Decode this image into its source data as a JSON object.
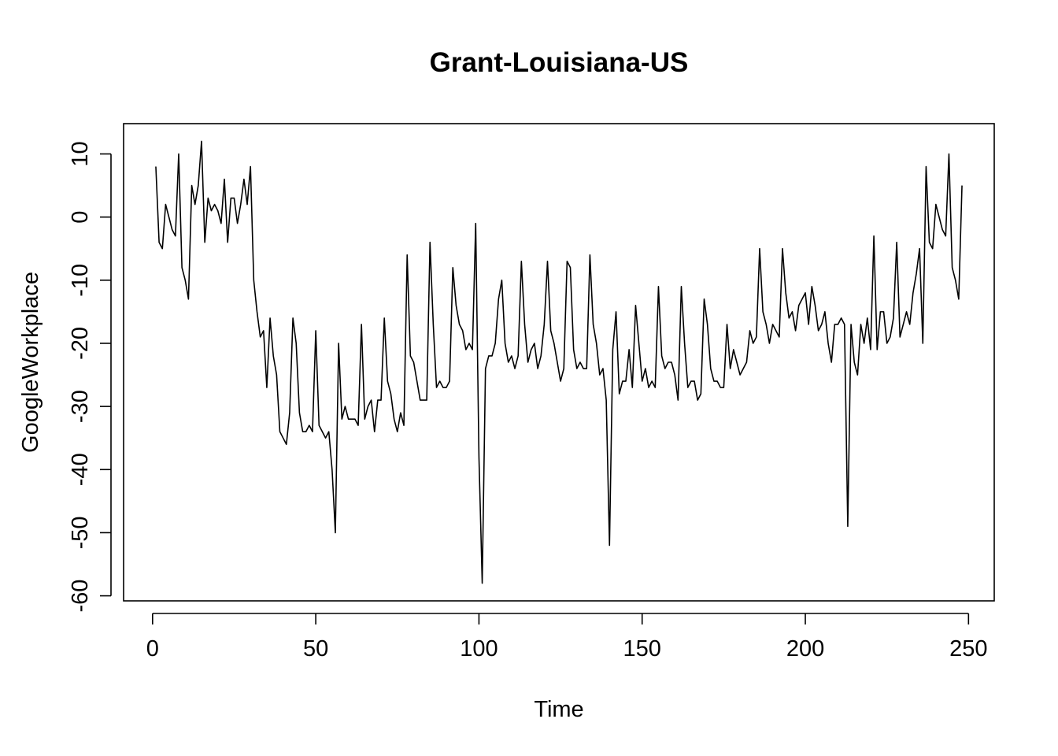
{
  "chart_data": {
    "type": "line",
    "title": "Grant-Louisiana-US",
    "xlabel": "Time",
    "ylabel": "GoogleWorkplace",
    "xlim": [
      -8.88,
      257.88
    ],
    "ylim": [
      -60.8,
      14.8
    ],
    "xticks": [
      0,
      50,
      100,
      150,
      200,
      250
    ],
    "yticks": [
      -60,
      -50,
      -40,
      -30,
      -20,
      -10,
      0,
      10
    ],
    "xtick_labels": [
      "0",
      "50",
      "100",
      "150",
      "200",
      "250"
    ],
    "ytick_labels": [
      "-60",
      "-50",
      "-40",
      "-30",
      "-20",
      "-10",
      "0",
      "10"
    ],
    "grid": false,
    "legend": "none",
    "line_color": "#000000",
    "x_start": 1,
    "series": [
      {
        "values": [
          8,
          -4,
          -5,
          2,
          0,
          -2,
          -3,
          10,
          -8,
          -10,
          -13,
          5,
          2,
          5,
          12,
          -4,
          3,
          1,
          2,
          1,
          -1,
          6,
          -4,
          3,
          3,
          -1,
          2,
          6,
          2,
          8,
          -10,
          -15,
          -19,
          -18,
          -27,
          -16,
          -22,
          -25,
          -34,
          -35,
          -36,
          -31,
          -16,
          -20,
          -31,
          -34,
          -34,
          -33,
          -34,
          -18,
          -33,
          -34,
          -35,
          -34,
          -40,
          -50,
          -20,
          -32,
          -30,
          -32,
          -32,
          -32,
          -33,
          -17,
          -32,
          -30,
          -29,
          -34,
          -29,
          -29,
          -16,
          -26,
          -28,
          -32,
          -34,
          -31,
          -33,
          -6,
          -22,
          -23,
          -26,
          -29,
          -29,
          -29,
          -4,
          -17,
          -27,
          -26,
          -27,
          -27,
          -26,
          -8,
          -14,
          -17,
          -18,
          -21,
          -20,
          -21,
          -1,
          -38,
          -58,
          -24,
          -22,
          -22,
          -20,
          -13,
          -10,
          -20,
          -23,
          -22,
          -24,
          -22,
          -7,
          -17,
          -23,
          -21,
          -20,
          -24,
          -22,
          -17,
          -7,
          -18,
          -20,
          -23,
          -26,
          -24,
          -7,
          -8,
          -21,
          -24,
          -23,
          -24,
          -24,
          -6,
          -17,
          -20,
          -25,
          -24,
          -29,
          -52,
          -21,
          -15,
          -28,
          -26,
          -26,
          -21,
          -27,
          -14,
          -20,
          -26,
          -24,
          -27,
          -26,
          -27,
          -11,
          -22,
          -24,
          -23,
          -23,
          -25,
          -29,
          -11,
          -20,
          -27,
          -26,
          -26,
          -29,
          -28,
          -13,
          -17,
          -24,
          -26,
          -26,
          -27,
          -27,
          -17,
          -24,
          -21,
          -23,
          -25,
          -24,
          -23,
          -18,
          -20,
          -19,
          -5,
          -15,
          -17,
          -20,
          -17,
          -18,
          -19,
          -5,
          -12,
          -16,
          -15,
          -18,
          -14,
          -13,
          -12,
          -17,
          -11,
          -14,
          -18,
          -17,
          -15,
          -20,
          -23,
          -17,
          -17,
          -16,
          -17,
          -49,
          -17,
          -23,
          -25,
          -17,
          -20,
          -16,
          -21,
          -3,
          -21,
          -15,
          -15,
          -20,
          -19,
          -16,
          -4,
          -19,
          -17,
          -15,
          -17,
          -12,
          -9,
          -5,
          -20,
          8,
          -4,
          -5,
          2,
          0,
          -2,
          -3,
          10,
          -8,
          -10,
          -13,
          5
        ]
      }
    ]
  }
}
